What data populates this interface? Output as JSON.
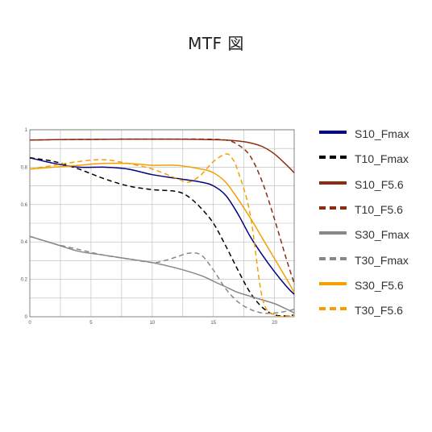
{
  "chart_data": {
    "type": "line",
    "title": "MTF 図",
    "xlabel": "",
    "ylabel": "",
    "xlim": [
      0,
      21.6
    ],
    "ylim": [
      0,
      1
    ],
    "x_ticks": [
      "0",
      "5",
      "10",
      "15",
      "20"
    ],
    "y_ticks": [
      "0",
      "0.2",
      "0.4",
      "0.6",
      "0.8",
      "1"
    ],
    "grid": true,
    "legend_position": "right",
    "series": [
      {
        "name": "S10_Fmax",
        "color": "#000080",
        "dash": "solid",
        "x": [
          0,
          2,
          4,
          6,
          8,
          10,
          12,
          14,
          15,
          16,
          17,
          18,
          19,
          20,
          21,
          21.6
        ],
        "y": [
          0.85,
          0.82,
          0.8,
          0.8,
          0.79,
          0.76,
          0.74,
          0.72,
          0.7,
          0.65,
          0.55,
          0.43,
          0.33,
          0.24,
          0.16,
          0.12
        ]
      },
      {
        "name": "T10_Fmax",
        "color": "#000000",
        "dash": "dashed",
        "x": [
          0,
          2,
          4,
          6,
          8,
          10,
          12,
          13,
          14,
          15,
          16,
          17,
          18,
          19,
          20,
          21,
          21.6
        ],
        "y": [
          0.85,
          0.83,
          0.79,
          0.74,
          0.7,
          0.68,
          0.67,
          0.64,
          0.58,
          0.5,
          0.38,
          0.25,
          0.13,
          0.05,
          0.01,
          0.005,
          0.01
        ]
      },
      {
        "name": "S10_F5.6",
        "color": "#8B2E0F",
        "dash": "solid",
        "x": [
          0,
          2,
          4,
          6,
          8,
          10,
          12,
          14,
          16,
          17,
          18,
          19,
          20,
          21,
          21.6
        ],
        "y": [
          0.945,
          0.947,
          0.948,
          0.949,
          0.95,
          0.95,
          0.95,
          0.948,
          0.945,
          0.94,
          0.93,
          0.91,
          0.87,
          0.81,
          0.77
        ]
      },
      {
        "name": "T10_F5.6",
        "color": "#8B2E0F",
        "dash": "dashed",
        "x": [
          0,
          2,
          4,
          6,
          8,
          10,
          12,
          14,
          16,
          17,
          18,
          19,
          20,
          21,
          21.6
        ],
        "y": [
          0.945,
          0.947,
          0.948,
          0.949,
          0.95,
          0.95,
          0.95,
          0.95,
          0.945,
          0.92,
          0.86,
          0.72,
          0.52,
          0.3,
          0.18
        ]
      },
      {
        "name": "S30_Fmax",
        "color": "#888888",
        "dash": "solid",
        "x": [
          0,
          2,
          4,
          6,
          8,
          10,
          12,
          14,
          15,
          16,
          17,
          18,
          19,
          20,
          21,
          21.6
        ],
        "y": [
          0.43,
          0.39,
          0.35,
          0.33,
          0.31,
          0.29,
          0.26,
          0.22,
          0.19,
          0.16,
          0.13,
          0.11,
          0.09,
          0.07,
          0.04,
          0.02
        ]
      },
      {
        "name": "T30_Fmax",
        "color": "#888888",
        "dash": "dashed",
        "x": [
          0,
          2,
          4,
          6,
          8,
          10,
          11,
          12,
          13,
          14,
          15,
          16,
          17,
          18,
          19,
          20,
          21,
          21.6
        ],
        "y": [
          0.43,
          0.39,
          0.36,
          0.33,
          0.31,
          0.29,
          0.3,
          0.32,
          0.34,
          0.33,
          0.25,
          0.15,
          0.08,
          0.04,
          0.02,
          0.02,
          0.03,
          0.04
        ]
      },
      {
        "name": "S30_F5.6",
        "color": "#F5A000",
        "dash": "solid",
        "x": [
          0,
          2,
          4,
          6,
          8,
          10,
          12,
          14,
          15,
          16,
          17,
          18,
          19,
          20,
          21,
          21.6
        ],
        "y": [
          0.79,
          0.8,
          0.81,
          0.82,
          0.82,
          0.81,
          0.81,
          0.79,
          0.77,
          0.72,
          0.63,
          0.53,
          0.42,
          0.31,
          0.2,
          0.13
        ]
      },
      {
        "name": "T30_F5.6",
        "color": "#F5A000",
        "dash": "dashed",
        "x": [
          0,
          2,
          4,
          6,
          8,
          10,
          12,
          13,
          14,
          15,
          16,
          16.5,
          17,
          18,
          19,
          20,
          21,
          21.6
        ],
        "y": [
          0.79,
          0.81,
          0.83,
          0.84,
          0.82,
          0.79,
          0.74,
          0.72,
          0.76,
          0.83,
          0.87,
          0.85,
          0.78,
          0.55,
          0.1,
          0.01,
          0.005,
          0.01
        ]
      }
    ]
  }
}
